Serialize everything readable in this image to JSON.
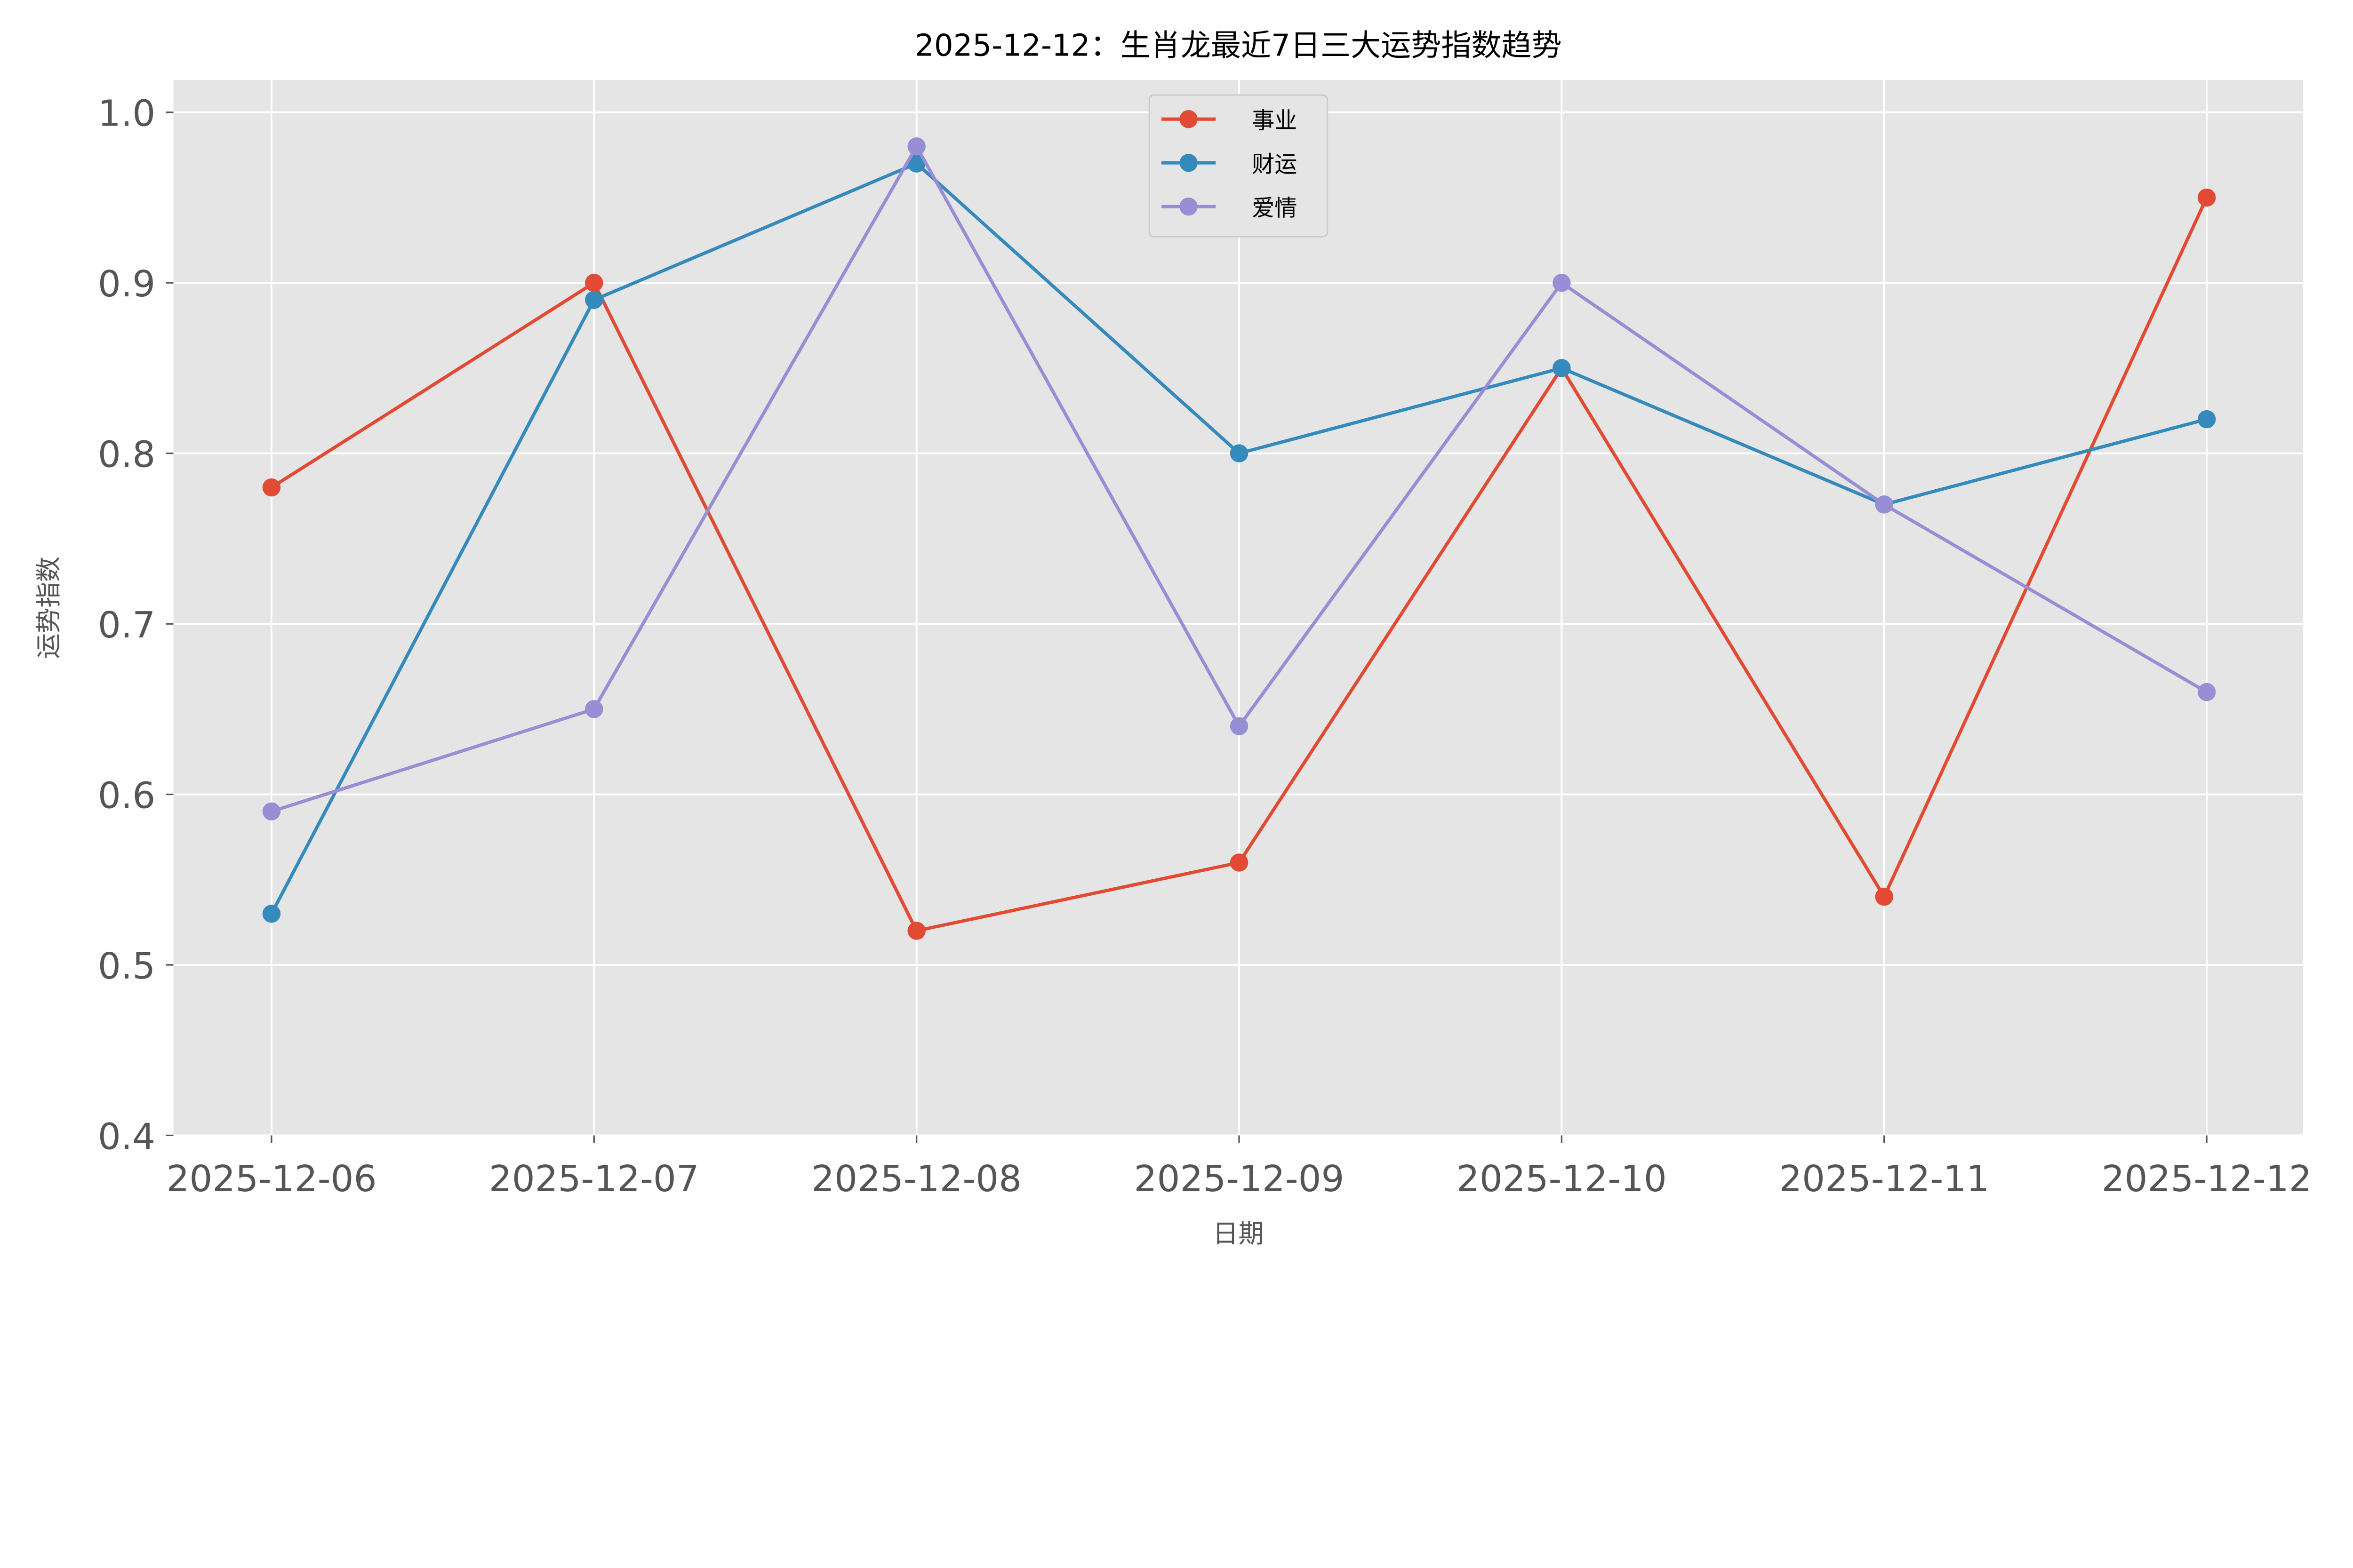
{
  "chart_data": {
    "type": "line",
    "title": "2025-12-12：生肖龙最近7日三大运势指数趋势",
    "xlabel": "日期",
    "ylabel": "运势指数",
    "categories": [
      "2025-12-06",
      "2025-12-07",
      "2025-12-08",
      "2025-12-09",
      "2025-12-10",
      "2025-12-11",
      "2025-12-12"
    ],
    "ylim": [
      0.4,
      1.019
    ],
    "yticks": [
      "0.4",
      "0.5",
      "0.6",
      "0.7",
      "0.8",
      "0.9",
      "1.0"
    ],
    "ytick_values": [
      0.4,
      0.5,
      0.6,
      0.7,
      0.8,
      0.9,
      1.0
    ],
    "grid": true,
    "legend_position": "top-center",
    "background": "#E5E5E5",
    "series": [
      {
        "name": "事业",
        "color": "#E24A33",
        "values": [
          0.78,
          0.9,
          0.52,
          0.56,
          0.85,
          0.54,
          0.95
        ]
      },
      {
        "name": "财运",
        "color": "#348ABD",
        "values": [
          0.53,
          0.89,
          0.97,
          0.8,
          0.85,
          0.77,
          0.82
        ]
      },
      {
        "name": "爱情",
        "color": "#988ED5",
        "values": [
          0.59,
          0.65,
          0.98,
          0.64,
          0.9,
          0.77,
          0.66
        ]
      }
    ]
  }
}
